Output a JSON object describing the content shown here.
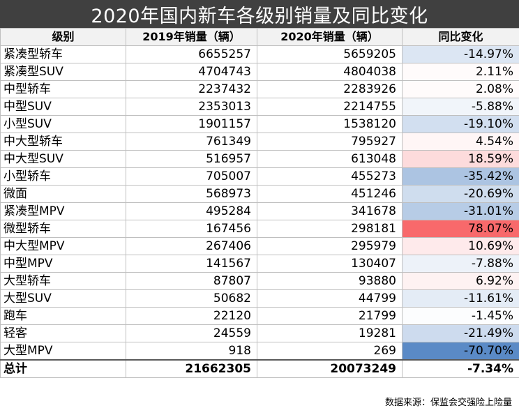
{
  "title": "2020年国内新车各级别销量及同比变化",
  "headers": [
    "级别",
    "2019年销量（辆）",
    "2020年销量（辆）",
    "同比变化"
  ],
  "rows": [
    {
      "cat": "紧凑型轿车",
      "v2019": "6655257",
      "v2020": "5659205",
      "change": "-14.97%",
      "pct": -14.97
    },
    {
      "cat": "紧凑型SUV",
      "v2019": "4704743",
      "v2020": "4804038",
      "change": "2.11%",
      "pct": 2.11
    },
    {
      "cat": "中型轿车",
      "v2019": "2237432",
      "v2020": "2283926",
      "change": "2.08%",
      "pct": 2.08
    },
    {
      "cat": "中型SUV",
      "v2019": "2353013",
      "v2020": "2214755",
      "change": "-5.88%",
      "pct": -5.88
    },
    {
      "cat": "小型SUV",
      "v2019": "1901157",
      "v2020": "1538120",
      "change": "-19.10%",
      "pct": -19.1
    },
    {
      "cat": "中大型轿车",
      "v2019": "761349",
      "v2020": "795927",
      "change": "4.54%",
      "pct": 4.54
    },
    {
      "cat": "中大型SUV",
      "v2019": "516957",
      "v2020": "613048",
      "change": "18.59%",
      "pct": 18.59
    },
    {
      "cat": "小型轿车",
      "v2019": "705007",
      "v2020": "455273",
      "change": "-35.42%",
      "pct": -35.42
    },
    {
      "cat": "微面",
      "v2019": "568973",
      "v2020": "451246",
      "change": "-20.69%",
      "pct": -20.69
    },
    {
      "cat": "紧凑型MPV",
      "v2019": "495284",
      "v2020": "341678",
      "change": "-31.01%",
      "pct": -31.01
    },
    {
      "cat": "微型轿车",
      "v2019": "167456",
      "v2020": "298181",
      "change": "78.07%",
      "pct": 78.07
    },
    {
      "cat": "中大型MPV",
      "v2019": "267406",
      "v2020": "295979",
      "change": "10.69%",
      "pct": 10.69
    },
    {
      "cat": "中型MPV",
      "v2019": "141567",
      "v2020": "130407",
      "change": "-7.88%",
      "pct": -7.88
    },
    {
      "cat": "大型轿车",
      "v2019": "87807",
      "v2020": "93880",
      "change": "6.92%",
      "pct": 6.92
    },
    {
      "cat": "大型SUV",
      "v2019": "50682",
      "v2020": "44799",
      "change": "-11.61%",
      "pct": -11.61
    },
    {
      "cat": "跑车",
      "v2019": "22120",
      "v2020": "21799",
      "change": "-1.45%",
      "pct": -1.45
    },
    {
      "cat": "轻客",
      "v2019": "24559",
      "v2020": "19281",
      "change": "-21.49%",
      "pct": -21.49
    },
    {
      "cat": "大型MPV",
      "v2019": "918",
      "v2020": "269",
      "change": "-70.70%",
      "pct": -70.7
    }
  ],
  "total": {
    "cat": "总计",
    "v2019": "21662305",
    "v2020": "20073249",
    "change": "-7.34%"
  },
  "source": "数据来源：保监会交强险上险量",
  "colors": {
    "title_bg": "#404040",
    "positive_max": "#f8696b",
    "negative_max": "#5a8ac6",
    "neutral": "#ffffff"
  }
}
